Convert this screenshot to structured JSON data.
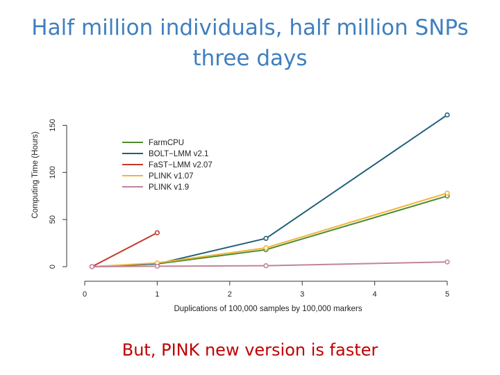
{
  "slide": {
    "title_line1": "Half million individuals, half million SNPs",
    "title_line2": "three days",
    "title_color": "#3f7fbf",
    "footnote": "But, PINK new version is faster",
    "footnote_color": "#c00000"
  },
  "chart_data": {
    "type": "line",
    "title": "",
    "xlabel": "Duplications of 100,000 samples by 100,000 markers",
    "ylabel": "Computing Time (Hours)",
    "xlim": [
      0,
      5
    ],
    "ylim": [
      0,
      150
    ],
    "xticks": [
      0,
      1,
      2,
      3,
      4,
      5
    ],
    "yticks": [
      0,
      50,
      100,
      150
    ],
    "grid": false,
    "legend_position": "top-left",
    "series": [
      {
        "name": "FarmCPU",
        "color": "#4d8b2e",
        "x": [
          0.1,
          1,
          2.5,
          5
        ],
        "y": [
          0,
          3,
          18,
          75
        ]
      },
      {
        "name": "BOLT−LMM v2.1",
        "color": "#1f5f7a",
        "x": [
          0.1,
          1,
          2.5,
          5
        ],
        "y": [
          0,
          3,
          30,
          161
        ]
      },
      {
        "name": "FaST−LMM v2.07",
        "color": "#c0392b",
        "x": [
          0.1,
          1
        ],
        "y": [
          0,
          36
        ]
      },
      {
        "name": "PLINK v1.07",
        "color": "#f0b43c",
        "x": [
          0.1,
          1,
          2.5,
          5
        ],
        "y": [
          0,
          4,
          20,
          78
        ]
      },
      {
        "name": "PLINK v1.9",
        "color": "#c0849a",
        "x": [
          0.1,
          1,
          2.5,
          5
        ],
        "y": [
          0,
          0.5,
          1,
          5
        ]
      }
    ]
  }
}
